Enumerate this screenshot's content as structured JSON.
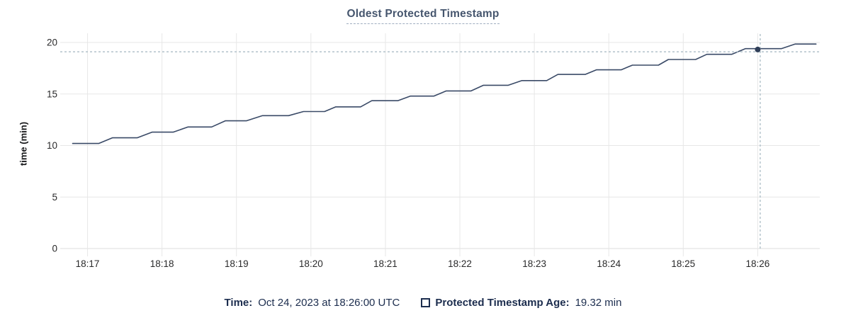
{
  "chart_data": {
    "type": "line",
    "title": "Oldest Protected Timestamp",
    "xlabel": "",
    "ylabel": "time (min)",
    "ylim": [
      0,
      20
    ],
    "yticks": [
      0,
      5,
      10,
      15,
      20
    ],
    "xticks": [
      "18:17",
      "18:18",
      "18:19",
      "18:20",
      "18:21",
      "18:22",
      "18:23",
      "18:24",
      "18:25",
      "18:26"
    ],
    "x_start": "18:16:38",
    "x_end": "18:26:50",
    "grid": true,
    "legend_position": "bottom",
    "series": [
      {
        "name": "Protected Timestamp Age",
        "unit": "min",
        "color": "#3a4a67",
        "points": [
          [
            "18:16:48",
            10.2
          ],
          [
            "18:17:09",
            10.2
          ],
          [
            "18:17:20",
            10.75
          ],
          [
            "18:17:40",
            10.75
          ],
          [
            "18:17:52",
            11.3
          ],
          [
            "18:18:09",
            11.3
          ],
          [
            "18:18:21",
            11.8
          ],
          [
            "18:18:40",
            11.8
          ],
          [
            "18:18:51",
            12.4
          ],
          [
            "18:19:08",
            12.4
          ],
          [
            "18:19:21",
            12.9
          ],
          [
            "18:19:42",
            12.9
          ],
          [
            "18:19:54",
            13.3
          ],
          [
            "18:20:11",
            13.3
          ],
          [
            "18:20:20",
            13.75
          ],
          [
            "18:20:40",
            13.75
          ],
          [
            "18:20:49",
            14.35
          ],
          [
            "18:21:10",
            14.35
          ],
          [
            "18:21:20",
            14.8
          ],
          [
            "18:21:39",
            14.8
          ],
          [
            "18:21:49",
            15.3
          ],
          [
            "18:22:09",
            15.3
          ],
          [
            "18:22:19",
            15.85
          ],
          [
            "18:22:39",
            15.85
          ],
          [
            "18:22:50",
            16.3
          ],
          [
            "18:23:10",
            16.3
          ],
          [
            "18:23:19",
            16.9
          ],
          [
            "18:23:41",
            16.9
          ],
          [
            "18:23:50",
            17.35
          ],
          [
            "18:24:10",
            17.35
          ],
          [
            "18:24:19",
            17.8
          ],
          [
            "18:24:40",
            17.8
          ],
          [
            "18:24:48",
            18.35
          ],
          [
            "18:25:10",
            18.35
          ],
          [
            "18:25:19",
            18.85
          ],
          [
            "18:25:39",
            18.85
          ],
          [
            "18:25:50",
            19.4
          ],
          [
            "18:26:19",
            19.4
          ],
          [
            "18:26:30",
            19.85
          ],
          [
            "18:26:47",
            19.85
          ]
        ]
      }
    ],
    "crosshair": {
      "vline_time": "18:26:02",
      "hline_value": 19.1,
      "point_time": "18:26:00",
      "point_value": 19.32
    }
  },
  "legend": {
    "time_label": "Time:",
    "time_value": "Oct 24, 2023 at 18:26:00 UTC",
    "series_label": "Protected Timestamp Age:",
    "series_value": "19.32 min"
  },
  "colors": {
    "title_text": "#46566e",
    "title_underline": "#9fadc0",
    "legend_text": "#1c2d4e",
    "axis_text": "#2a2a2b",
    "gridline": "#e7e7e7",
    "zero_line": "#dedede",
    "series_line": "#3a4a67",
    "hover_dot": "#2f3e58",
    "crosshair": "#a3b6c0",
    "background": "#ffffff"
  }
}
